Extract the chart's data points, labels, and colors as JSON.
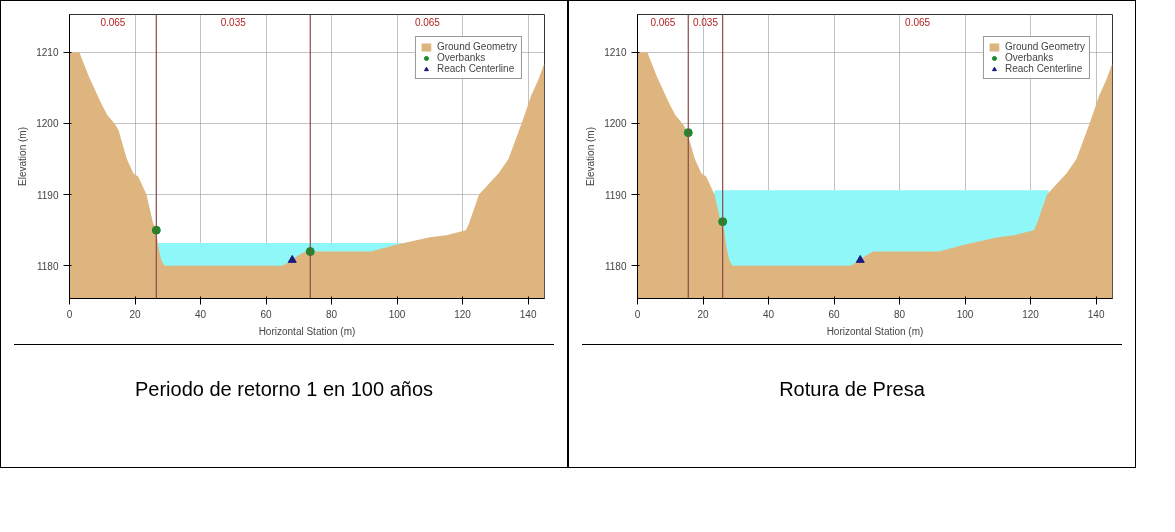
{
  "chart_data": [
    {
      "type": "area",
      "xlabel": "Horizontal Station (m)",
      "ylabel": "Elevation (m)",
      "xlim": [
        0,
        145
      ],
      "ylim": [
        1175.4,
        1215.3
      ],
      "xticks": [
        0,
        20,
        40,
        60,
        80,
        100,
        120,
        140
      ],
      "yticks": [
        1180,
        1190,
        1200,
        1210
      ],
      "grid": true,
      "legend": "top right",
      "series": [
        {
          "color": "#8ff7f7",
          "x": [
            27,
            104
          ],
          "values": [
            1183.2,
            1183.2
          ]
        },
        {
          "name": "Ground Geometry",
          "color": "#dfb57f",
          "x": [
            0,
            3,
            6,
            7.5,
            8.5,
            10,
            11.5,
            14,
            15,
            17.5,
            19.5,
            21,
            23.5,
            25.5,
            26.5,
            27,
            28,
            29,
            38,
            45,
            54,
            60,
            65,
            68,
            70,
            72,
            74,
            77,
            80,
            85,
            92,
            100,
            110,
            115,
            121,
            122,
            125,
            131,
            134,
            138,
            141,
            143,
            145
          ],
          "values": [
            1210,
            1210,
            1206.5,
            1205,
            1204,
            1202.5,
            1201.2,
            1199.8,
            1199,
            1195,
            1193,
            1192.5,
            1190,
            1186,
            1185,
            1183,
            1180.8,
            1180,
            1180,
            1180,
            1180,
            1180,
            1180,
            1180.8,
            1181.5,
            1182,
            1182,
            1182,
            1182,
            1182,
            1182,
            1183,
            1184,
            1184.3,
            1185,
            1186,
            1190,
            1193,
            1195,
            1200,
            1204,
            1206,
            1208.5
          ]
        },
        {
          "type": "scatter",
          "name": "Overbanks",
          "color": "#1a8a2a",
          "marker": "circle",
          "x": [
            26.5,
            73.5
          ],
          "values": [
            1185,
            1182
          ]
        },
        {
          "type": "scatter",
          "name": "Reach Centerline",
          "color": "#1a1a80",
          "marker": "triangle",
          "x": [
            68
          ],
          "values": [
            1180.8
          ]
        }
      ],
      "ref_lines": [
        {
          "axis": "x",
          "value": 26.5,
          "color": "#8a4a4a"
        },
        {
          "axis": "x",
          "value": 73.5,
          "color": "#8a4a4a"
        }
      ],
      "annotations": [
        "0.065",
        "0.035",
        "0.065",
        "Periodo de retorno 1 en 100 años"
      ]
    },
    {
      "type": "area",
      "xlabel": "Horizontal Station (m)",
      "ylabel": "Elevation (m)",
      "xlim": [
        0,
        145
      ],
      "ylim": [
        1175.4,
        1215.3
      ],
      "xticks": [
        0,
        20,
        40,
        60,
        80,
        100,
        120,
        140
      ],
      "yticks": [
        1180,
        1190,
        1200,
        1210
      ],
      "grid": true,
      "legend": "top right",
      "series": [
        {
          "color": "#8ff7f7",
          "x": [
            23.5,
            125.5
          ],
          "values": [
            1190.6,
            1190.6
          ]
        },
        {
          "name": "Ground Geometry",
          "color": "#dfb57f",
          "x": [
            0,
            3,
            6,
            7.5,
            8.5,
            10,
            11.5,
            14,
            15,
            17.5,
            19.5,
            21,
            23.5,
            25.5,
            26.5,
            27,
            28,
            29,
            38,
            45,
            54,
            60,
            65,
            68,
            70,
            72,
            74,
            77,
            80,
            85,
            92,
            100,
            110,
            115,
            121,
            122,
            125,
            131,
            134,
            138,
            141,
            143,
            145
          ],
          "values": [
            1210,
            1210,
            1206.5,
            1205,
            1204,
            1202.5,
            1201.2,
            1199.8,
            1199,
            1195,
            1193,
            1192.5,
            1190,
            1186,
            1185,
            1183,
            1180.8,
            1180,
            1180,
            1180,
            1180,
            1180,
            1180,
            1180.8,
            1181.5,
            1182,
            1182,
            1182,
            1182,
            1182,
            1182,
            1183,
            1184,
            1184.3,
            1185,
            1186,
            1190,
            1193,
            1195,
            1200,
            1204,
            1206,
            1208.5
          ]
        },
        {
          "type": "scatter",
          "name": "Overbanks",
          "color": "#1a8a2a",
          "marker": "circle",
          "x": [
            15.5,
            26
          ],
          "values": [
            1198.7,
            1186.2
          ]
        },
        {
          "type": "scatter",
          "name": "Reach Centerline",
          "color": "#1a1a80",
          "marker": "triangle",
          "x": [
            68
          ],
          "values": [
            1180.8
          ]
        }
      ],
      "ref_lines": [
        {
          "axis": "x",
          "value": 15.5,
          "color": "#8a4a4a"
        },
        {
          "axis": "x",
          "value": 26,
          "color": "#8a4a4a"
        }
      ],
      "annotations": [
        "0.065",
        "0.035",
        "0.065",
        "Rotura de Presa"
      ]
    }
  ]
}
